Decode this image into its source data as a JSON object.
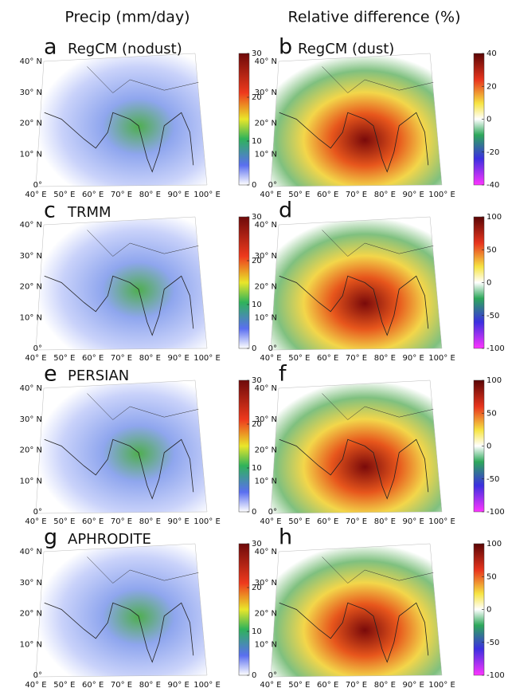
{
  "headers": [
    "Precip (mm/day)",
    "Relative difference (%)"
  ],
  "lat_labels": [
    "0°",
    "10° N",
    "20° N",
    "30° N",
    "40° N"
  ],
  "lon_labels": [
    "40° E",
    "50° E",
    "60° E",
    "70° E",
    "80° E",
    "90° E",
    "100° E"
  ],
  "panels": [
    {
      "letter": "a",
      "title": "RegCM (nodust)",
      "colorbar": {
        "lim": [
          0,
          30
        ],
        "ticks": [
          0,
          10,
          20,
          30
        ]
      }
    },
    {
      "letter": "b",
      "title": "RegCM (dust)",
      "colorbar": {
        "lim": [
          -40,
          40
        ],
        "ticks": [
          -40,
          -20,
          0,
          20,
          40
        ]
      }
    },
    {
      "letter": "c",
      "title": "TRMM",
      "colorbar": {
        "lim": [
          0,
          30
        ],
        "ticks": [
          0,
          10,
          20,
          30
        ]
      }
    },
    {
      "letter": "d",
      "colorbar": {
        "lim": [
          -100,
          100
        ],
        "ticks": [
          -100,
          -50,
          0,
          50,
          100
        ]
      }
    },
    {
      "letter": "e",
      "title": "PERSIAN",
      "colorbar": {
        "lim": [
          0,
          30
        ],
        "ticks": [
          0,
          10,
          20,
          30
        ]
      }
    },
    {
      "letter": "f",
      "colorbar": {
        "lim": [
          -100,
          100
        ],
        "ticks": [
          -100,
          -50,
          0,
          50,
          100
        ]
      }
    },
    {
      "letter": "g",
      "title": "APHRODITE",
      "colorbar": {
        "lim": [
          0,
          30
        ],
        "ticks": [
          0,
          10,
          20,
          30
        ]
      }
    },
    {
      "letter": "h",
      "colorbar": {
        "lim": [
          -100,
          100
        ],
        "ticks": [
          -100,
          -50,
          0,
          50,
          100
        ]
      }
    }
  ]
}
